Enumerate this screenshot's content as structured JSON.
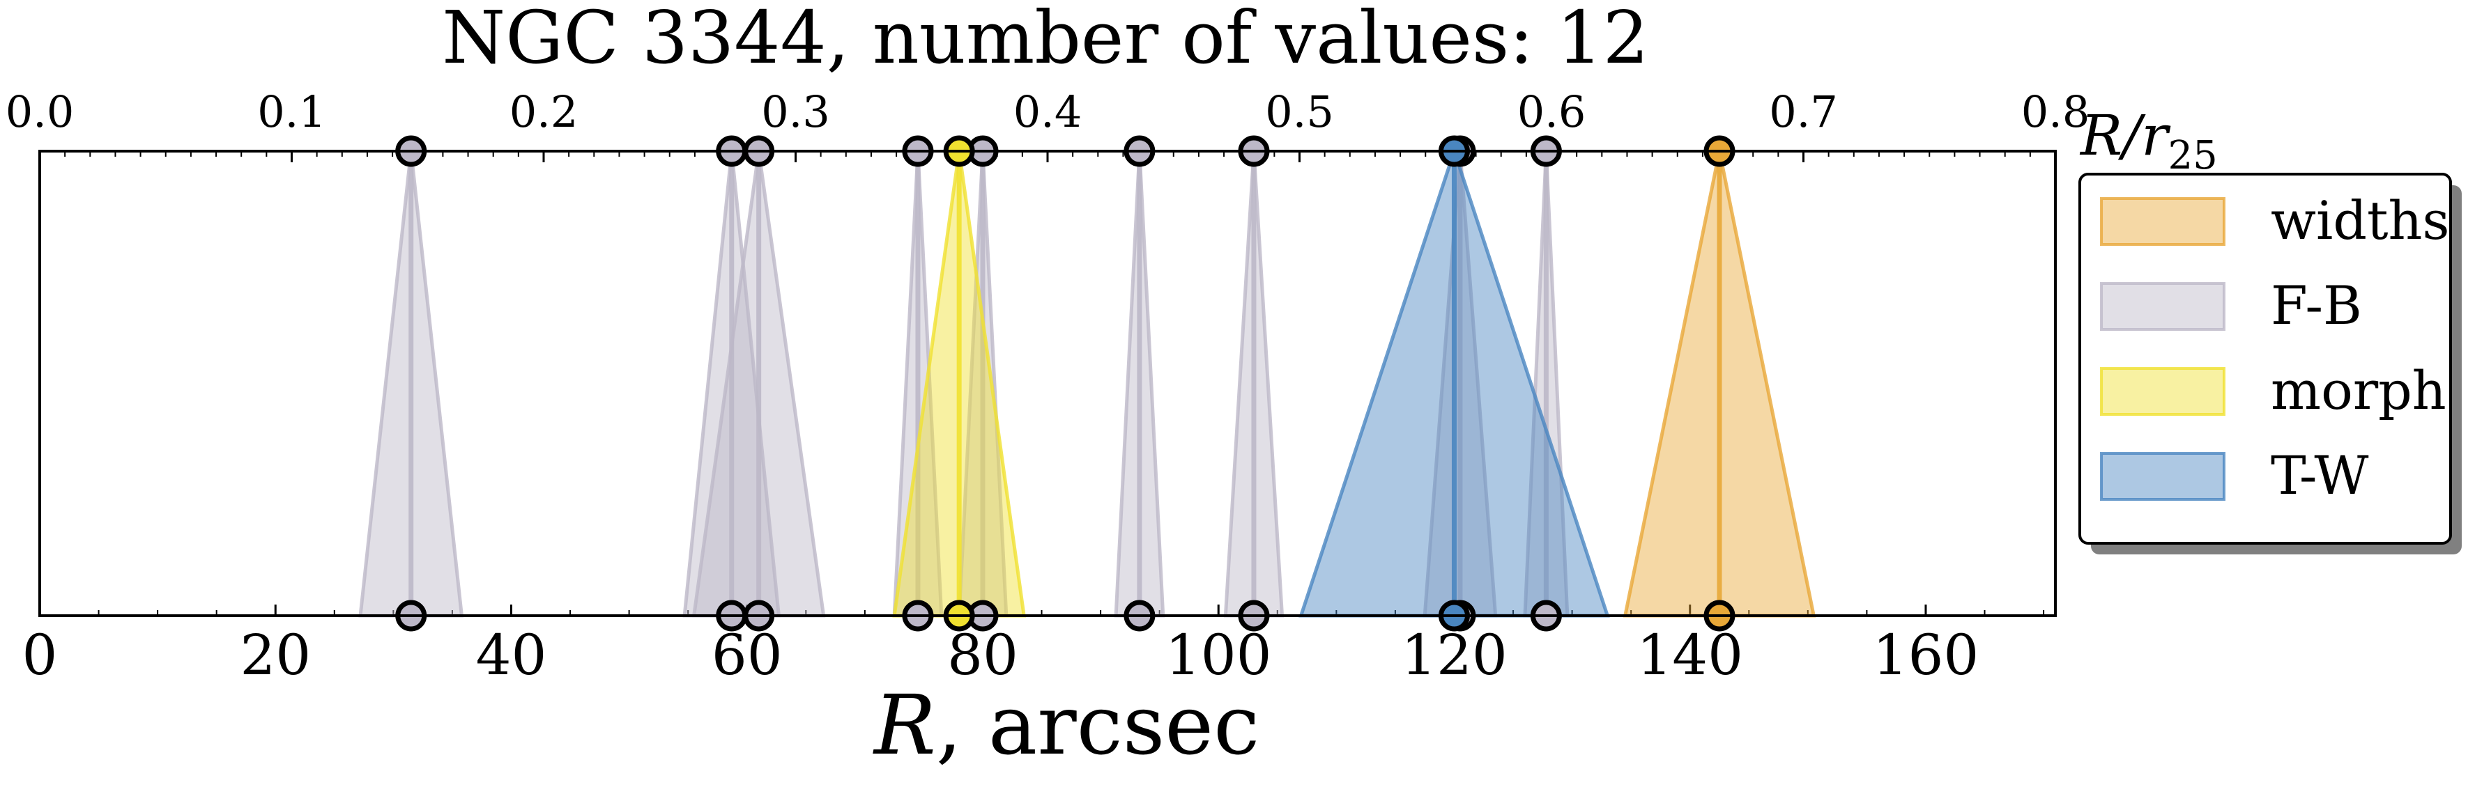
{
  "chart_data": {
    "type": "scatter",
    "title": "NGC 3344, number of values: 12",
    "xlabel_main": "R",
    "xlabel_rest": ", arcsec",
    "top_axis_label": "R/r",
    "top_axis_label_sub": "25",
    "xlim": [
      0,
      171
    ],
    "x_ticks": [
      0,
      20,
      40,
      60,
      80,
      100,
      120,
      140,
      160
    ],
    "top_xlim": [
      0,
      0.8
    ],
    "top_ticks": [
      0.0,
      0.1,
      0.2,
      0.3,
      0.4,
      0.5,
      0.6,
      0.7,
      0.8
    ],
    "legend_position": "right",
    "series": [
      {
        "name": "widths",
        "color": "#e8a838",
        "points": [
          {
            "x": 142.5,
            "half_width": 8.0
          }
        ]
      },
      {
        "name": "F-B",
        "color": "#bdb8c8",
        "points": [
          {
            "x": 31.5,
            "half_width": 4.3
          },
          {
            "x": 58.7,
            "half_width": 4.0
          },
          {
            "x": 61.0,
            "half_width": 5.5
          },
          {
            "x": 74.5,
            "half_width": 2.0
          },
          {
            "x": 80.0,
            "half_width": 2.0
          },
          {
            "x": 93.3,
            "half_width": 2.0
          },
          {
            "x": 103.0,
            "half_width": 2.4
          },
          {
            "x": 120.5,
            "half_width": 3.0
          },
          {
            "x": 127.8,
            "half_width": 1.8
          }
        ]
      },
      {
        "name": "morph",
        "color": "#f0e130",
        "points": [
          {
            "x": 78.0,
            "half_width": 5.5
          }
        ]
      },
      {
        "name": "T-W",
        "color": "#4a86c0",
        "points": [
          {
            "x": 120.0,
            "half_width": 13.0
          }
        ]
      }
    ]
  }
}
